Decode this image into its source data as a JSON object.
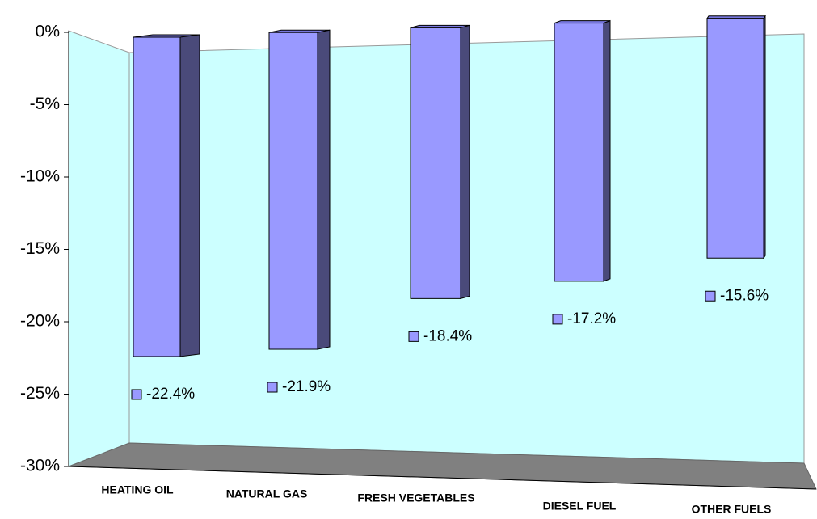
{
  "chart_data": {
    "type": "bar3d",
    "categories": [
      "HEATING OIL",
      "NATURAL GAS",
      "FRESH VEGETABLES",
      "DIESEL FUEL",
      "OTHER FUELS"
    ],
    "values": [
      -22.4,
      -21.9,
      -18.4,
      -17.2,
      -15.6
    ],
    "value_labels": [
      "-22.4%",
      "-21.9%",
      "-18.4%",
      "-17.2%",
      "-15.6%"
    ],
    "color": "#9999ff",
    "ylim": [
      -30,
      0
    ],
    "yticks": [
      {
        "value": 0,
        "label": "0%"
      },
      {
        "value": -5,
        "label": "-5%"
      },
      {
        "value": -10,
        "label": "-10%"
      },
      {
        "value": -15,
        "label": "-15%"
      },
      {
        "value": -20,
        "label": "-20%"
      },
      {
        "value": -25,
        "label": "-25%"
      },
      {
        "value": -30,
        "label": "-30%"
      }
    ]
  }
}
